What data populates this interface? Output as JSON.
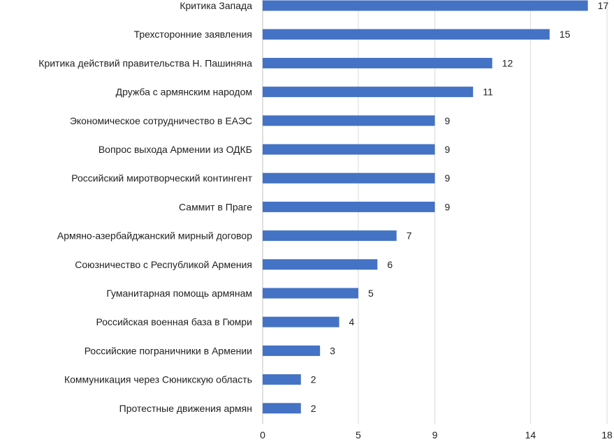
{
  "chart_data": {
    "type": "bar",
    "orientation": "horizontal",
    "categories": [
      "Критика Запада",
      "Трехсторонние заявления",
      "Критика действий правительства Н. Пашиняна",
      "Дружба с армянским народом",
      "Экономическое сотрудничество в ЕАЭС",
      "Вопрос выхода Армении из ОДКБ",
      "Российский миротворческий контингент",
      "Саммит в Праге",
      "Армяно-азербайджанский мирный договор",
      "Союзничество с Республикой Армения",
      "Гуманитарная помощь армянам",
      "Российская военная база в Гюмри",
      "Российские пограничники в Армении",
      "Коммуникация через Сюникскую область",
      "Протестные движения армян"
    ],
    "values": [
      17,
      15,
      12,
      11,
      9,
      9,
      9,
      9,
      7,
      6,
      5,
      4,
      3,
      2,
      2
    ],
    "xlim": [
      0,
      18
    ],
    "xticks": [
      "0",
      "5",
      "9",
      "14",
      "18"
    ],
    "grid": "vertical",
    "bar_color": "#4472c4",
    "grid_color": "#d9d9d9",
    "axis_color": "#bfbfbf",
    "title": "",
    "xlabel": "",
    "ylabel": ""
  }
}
